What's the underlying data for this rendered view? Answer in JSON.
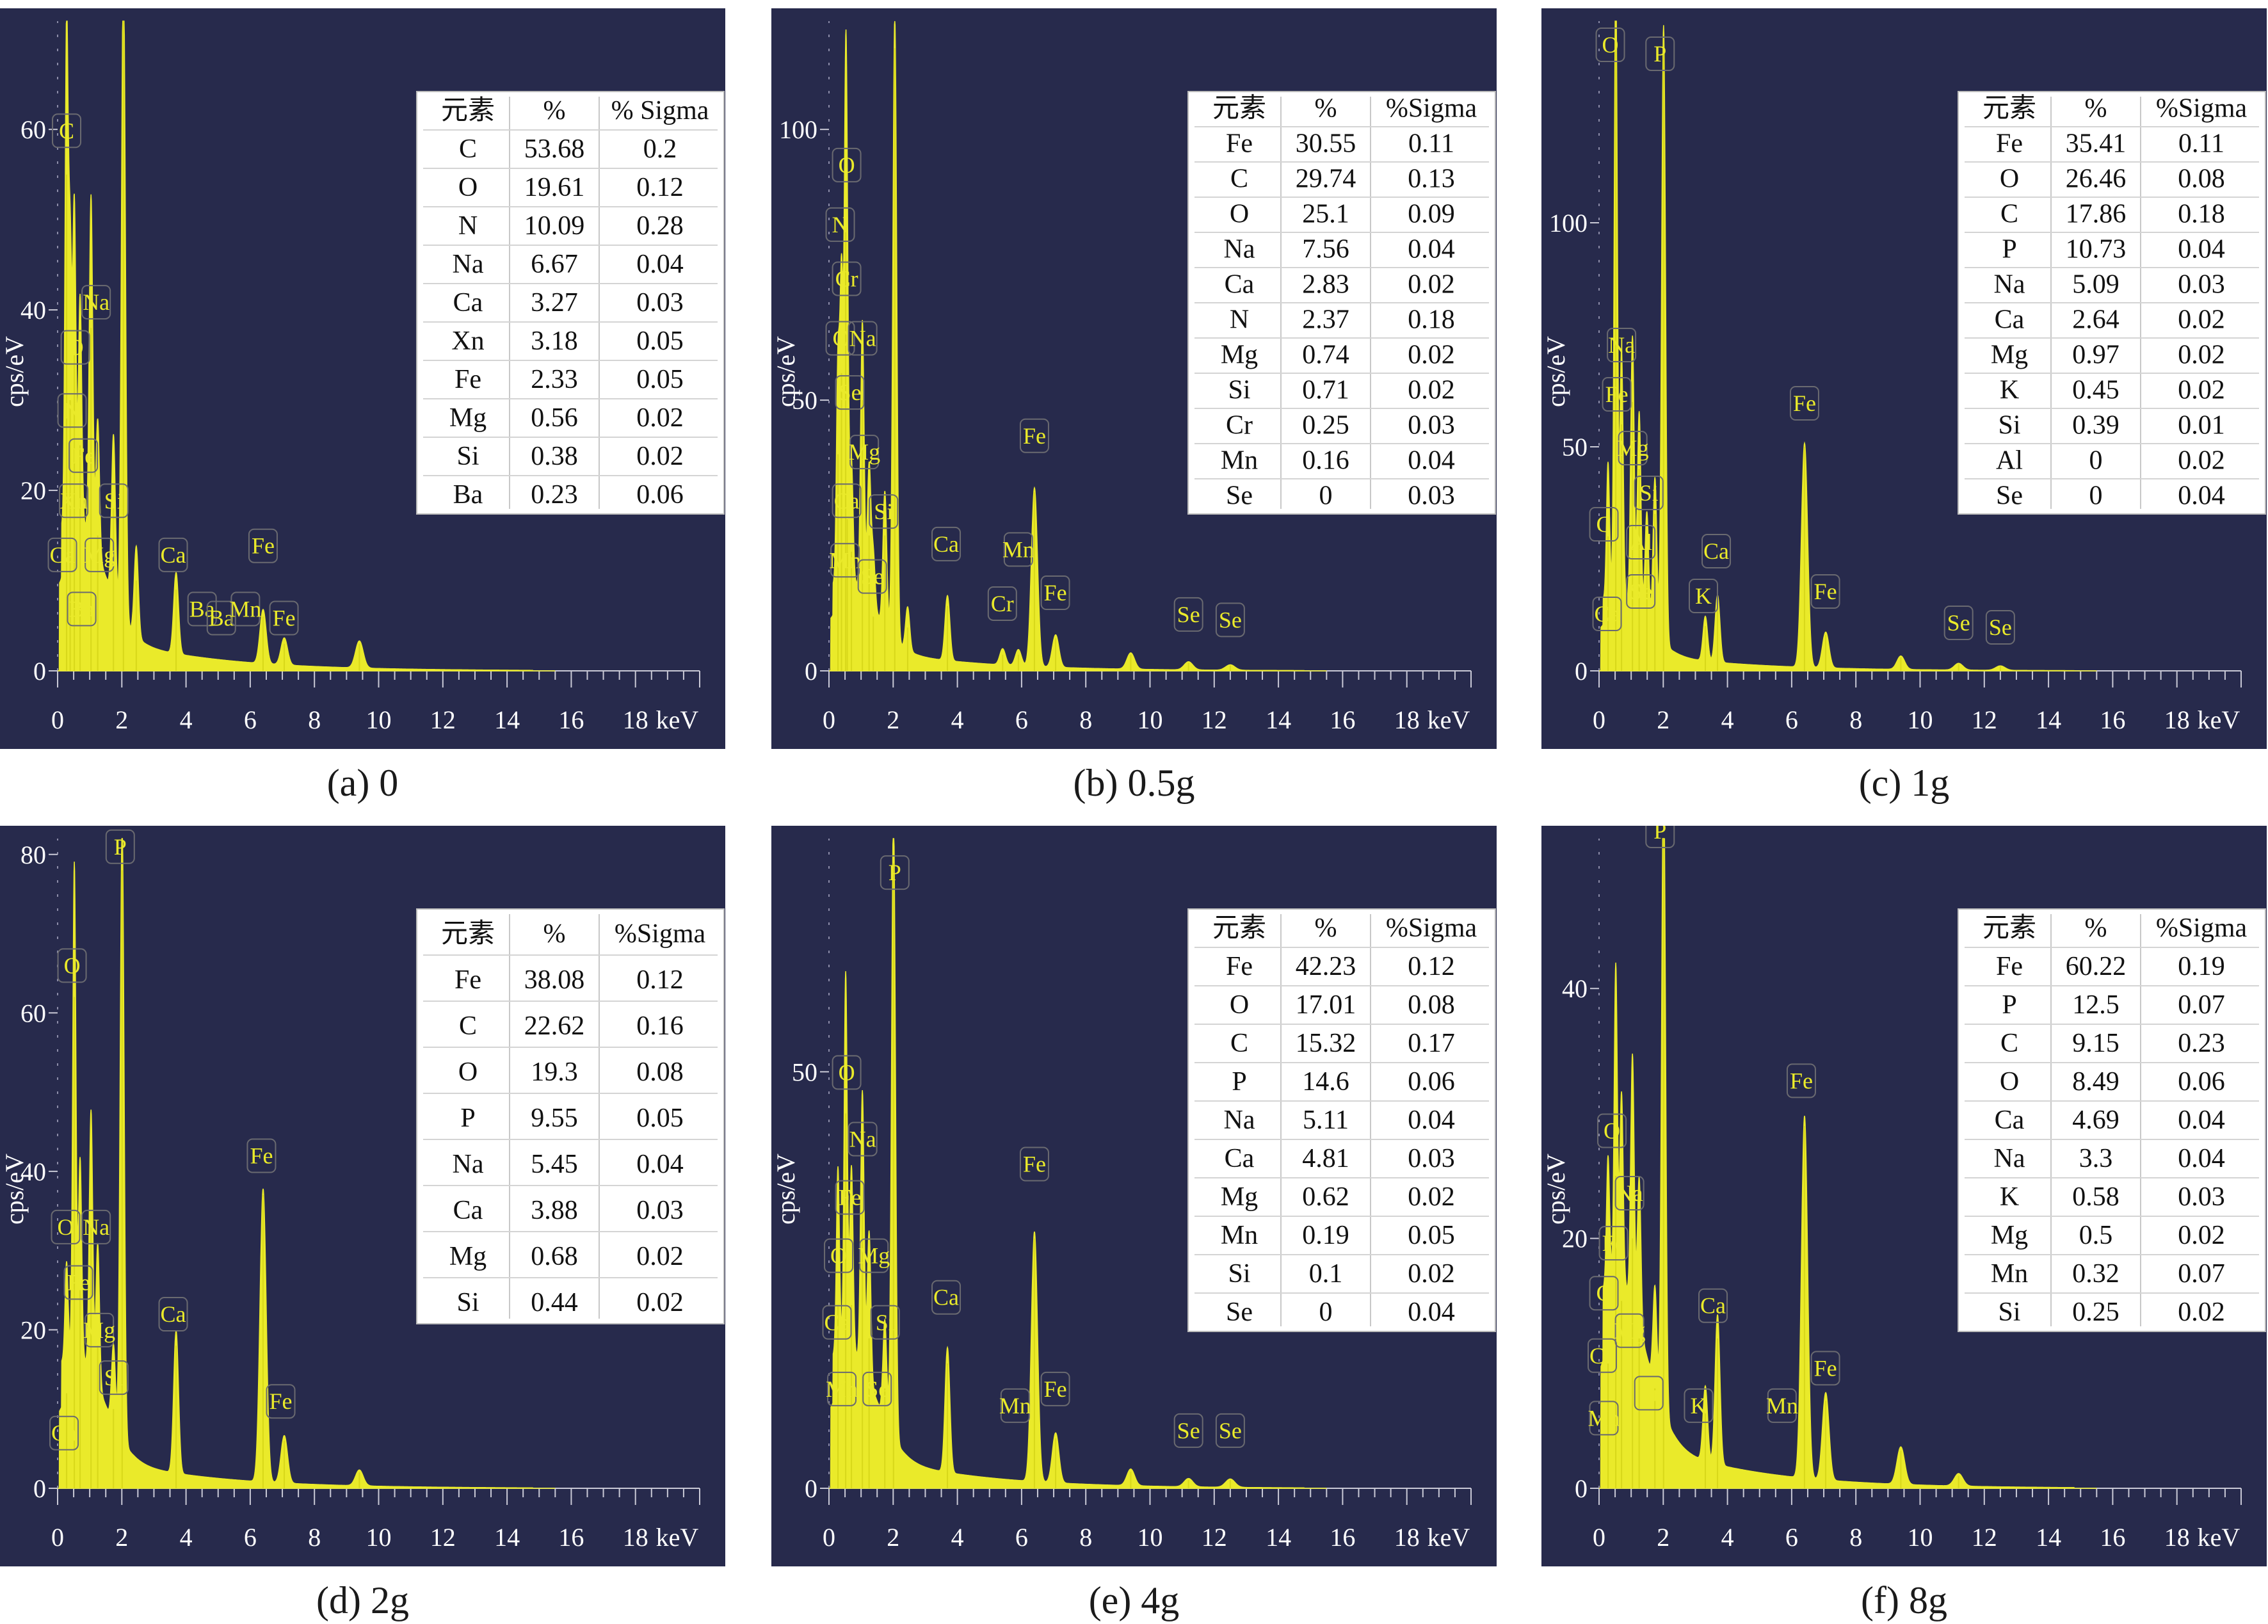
{
  "x_unit": "keV",
  "y_label": "cps/eV",
  "x_ticks": [
    0,
    2,
    4,
    6,
    8,
    10,
    12,
    14,
    16,
    18
  ],
  "table_header": {
    "element": "元素",
    "percent": "%"
  },
  "colors": {
    "background": "#272a4c",
    "spectrum": "#eaea2a",
    "axis_text": "#ffffff",
    "label": "#eaea2a",
    "table_bg": "#ffffff"
  },
  "chart_data": [
    {
      "type": "line",
      "caption": "(a) 0",
      "ylim": [
        0,
        72
      ],
      "y_ticks": [
        0,
        20,
        40,
        60
      ],
      "sigma_header": "% Sigma",
      "table": [
        [
          "C",
          "53.68",
          "0.2"
        ],
        [
          "O",
          "19.61",
          "0.12"
        ],
        [
          "N",
          "10.09",
          "0.28"
        ],
        [
          "Na",
          "6.67",
          "0.04"
        ],
        [
          "Ca",
          "3.27",
          "0.03"
        ],
        [
          "Xn",
          "3.18",
          "0.05"
        ],
        [
          "Fe",
          "2.33",
          "0.05"
        ],
        [
          "Mg",
          "0.56",
          "0.02"
        ],
        [
          "Si",
          "0.38",
          "0.02"
        ],
        [
          "Ba",
          "0.23",
          "0.06"
        ]
      ],
      "peaks": [
        {
          "x": 0.28,
          "y": 55
        },
        {
          "x": 0.39,
          "y": 30
        },
        {
          "x": 0.52,
          "y": 35
        },
        {
          "x": 0.7,
          "y": 25
        },
        {
          "x": 1.04,
          "y": 38
        },
        {
          "x": 1.25,
          "y": 15
        },
        {
          "x": 1.74,
          "y": 18
        },
        {
          "x": 2.05,
          "y": 73
        },
        {
          "x": 2.45,
          "y": 10
        },
        {
          "x": 3.69,
          "y": 9
        },
        {
          "x": 6.4,
          "y": 6
        },
        {
          "x": 7.06,
          "y": 3
        },
        {
          "x": 9.4,
          "y": 3
        }
      ],
      "labels": [
        {
          "text": "C",
          "x": 0.28,
          "y": 59
        },
        {
          "text": "Na",
          "x": 1.2,
          "y": 40
        },
        {
          "text": "O",
          "x": 0.55,
          "y": 35
        },
        {
          "text": "N",
          "x": 0.45,
          "y": 28
        },
        {
          "text": "Fe",
          "x": 0.8,
          "y": 23
        },
        {
          "text": "Xn",
          "x": 0.5,
          "y": 18
        },
        {
          "text": "Si",
          "x": 1.75,
          "y": 18
        },
        {
          "text": "Ca",
          "x": 0.15,
          "y": 12
        },
        {
          "text": "Mg",
          "x": 1.3,
          "y": 12
        },
        {
          "text": "Ba",
          "x": 0.75,
          "y": 6
        },
        {
          "text": "Ca",
          "x": 3.6,
          "y": 12
        },
        {
          "text": "Fe",
          "x": 6.4,
          "y": 13
        },
        {
          "text": "Ba",
          "x": 4.5,
          "y": 6
        },
        {
          "text": "Ba",
          "x": 5.1,
          "y": 5
        },
        {
          "text": "Mn",
          "x": 5.85,
          "y": 6
        },
        {
          "text": "Fe",
          "x": 7.05,
          "y": 5
        }
      ]
    },
    {
      "type": "line",
      "caption": "(b) 0.5g",
      "ylim": [
        0,
        120
      ],
      "y_ticks": [
        0,
        50,
        100
      ],
      "sigma_header": "%Sigma",
      "table": [
        [
          "Fe",
          "30.55",
          "0.11"
        ],
        [
          "C",
          "29.74",
          "0.13"
        ],
        [
          "O",
          "25.1",
          "0.09"
        ],
        [
          "Na",
          "7.56",
          "0.04"
        ],
        [
          "Ca",
          "2.83",
          "0.02"
        ],
        [
          "N",
          "2.37",
          "0.18"
        ],
        [
          "Mg",
          "0.74",
          "0.02"
        ],
        [
          "Si",
          "0.71",
          "0.02"
        ],
        [
          "Cr",
          "0.25",
          "0.03"
        ],
        [
          "Mn",
          "0.16",
          "0.04"
        ],
        [
          "Se",
          "0",
          "0.03"
        ]
      ],
      "peaks": [
        {
          "x": 0.28,
          "y": 40
        },
        {
          "x": 0.39,
          "y": 55
        },
        {
          "x": 0.52,
          "y": 82
        },
        {
          "x": 0.57,
          "y": 28
        },
        {
          "x": 0.7,
          "y": 22
        },
        {
          "x": 1.04,
          "y": 50
        },
        {
          "x": 1.25,
          "y": 25
        },
        {
          "x": 1.38,
          "y": 10
        },
        {
          "x": 1.74,
          "y": 25
        },
        {
          "x": 2.05,
          "y": 115
        },
        {
          "x": 2.45,
          "y": 8
        },
        {
          "x": 3.69,
          "y": 12
        },
        {
          "x": 5.41,
          "y": 3
        },
        {
          "x": 5.9,
          "y": 3
        },
        {
          "x": 6.4,
          "y": 33
        },
        {
          "x": 7.06,
          "y": 6
        },
        {
          "x": 9.4,
          "y": 3
        },
        {
          "x": 11.2,
          "y": 1.5
        },
        {
          "x": 12.5,
          "y": 1
        }
      ],
      "labels": [
        {
          "text": "O",
          "x": 0.55,
          "y": 92
        },
        {
          "text": "N",
          "x": 0.35,
          "y": 81
        },
        {
          "text": "Cr",
          "x": 0.55,
          "y": 71
        },
        {
          "text": "C",
          "x": 0.35,
          "y": 60
        },
        {
          "text": "Na",
          "x": 1.05,
          "y": 60
        },
        {
          "text": "Se",
          "x": 0.65,
          "y": 50
        },
        {
          "text": "Mg",
          "x": 1.1,
          "y": 39
        },
        {
          "text": "Ca",
          "x": 0.55,
          "y": 30
        },
        {
          "text": "Si",
          "x": 1.7,
          "y": 28
        },
        {
          "text": "Mn",
          "x": 0.5,
          "y": 19
        },
        {
          "text": "Se",
          "x": 1.35,
          "y": 16
        },
        {
          "text": "Ca",
          "x": 3.65,
          "y": 22
        },
        {
          "text": "Mn",
          "x": 5.9,
          "y": 21
        },
        {
          "text": "Cr",
          "x": 5.4,
          "y": 11
        },
        {
          "text": "Fe",
          "x": 6.4,
          "y": 42
        },
        {
          "text": "Fe",
          "x": 7.05,
          "y": 13
        },
        {
          "text": "Se",
          "x": 11.2,
          "y": 9
        },
        {
          "text": "Se",
          "x": 12.5,
          "y": 8
        }
      ]
    },
    {
      "type": "line",
      "caption": "(c) 1g",
      "ylim": [
        0,
        145
      ],
      "y_ticks": [
        0,
        50,
        100
      ],
      "sigma_header": "%Sigma",
      "table": [
        [
          "Fe",
          "35.41",
          "0.11"
        ],
        [
          "O",
          "26.46",
          "0.08"
        ],
        [
          "C",
          "17.86",
          "0.18"
        ],
        [
          "P",
          "10.73",
          "0.04"
        ],
        [
          "Na",
          "5.09",
          "0.03"
        ],
        [
          "Ca",
          "2.64",
          "0.02"
        ],
        [
          "Mg",
          "0.97",
          "0.02"
        ],
        [
          "K",
          "0.45",
          "0.02"
        ],
        [
          "Si",
          "0.39",
          "0.01"
        ],
        [
          "Al",
          "0",
          "0.02"
        ],
        [
          "Se",
          "0",
          "0.04"
        ]
      ],
      "peaks": [
        {
          "x": 0.28,
          "y": 30
        },
        {
          "x": 0.52,
          "y": 140
        },
        {
          "x": 0.7,
          "y": 55
        },
        {
          "x": 1.04,
          "y": 60
        },
        {
          "x": 1.25,
          "y": 45
        },
        {
          "x": 1.49,
          "y": 25
        },
        {
          "x": 1.74,
          "y": 35
        },
        {
          "x": 2.01,
          "y": 138
        },
        {
          "x": 3.31,
          "y": 10
        },
        {
          "x": 3.69,
          "y": 15
        },
        {
          "x": 6.4,
          "y": 50
        },
        {
          "x": 7.06,
          "y": 8
        },
        {
          "x": 9.4,
          "y": 3
        },
        {
          "x": 11.2,
          "y": 1.5
        },
        {
          "x": 12.5,
          "y": 1
        }
      ],
      "labels": [
        {
          "text": "O",
          "x": 0.35,
          "y": 138
        },
        {
          "text": "P",
          "x": 1.9,
          "y": 136
        },
        {
          "text": "Na",
          "x": 0.7,
          "y": 71
        },
        {
          "text": "Fe",
          "x": 0.55,
          "y": 60
        },
        {
          "text": "Mg",
          "x": 1.05,
          "y": 48
        },
        {
          "text": "Si",
          "x": 1.55,
          "y": 38
        },
        {
          "text": "C",
          "x": 0.15,
          "y": 31
        },
        {
          "text": "Al",
          "x": 1.3,
          "y": 27
        },
        {
          "text": "Se",
          "x": 1.3,
          "y": 16
        },
        {
          "text": "Ca",
          "x": 0.25,
          "y": 11
        },
        {
          "text": "K",
          "x": 3.25,
          "y": 15
        },
        {
          "text": "Ca",
          "x": 3.65,
          "y": 25
        },
        {
          "text": "Fe",
          "x": 6.4,
          "y": 58
        },
        {
          "text": "Fe",
          "x": 7.05,
          "y": 16
        },
        {
          "text": "Se",
          "x": 11.2,
          "y": 9
        },
        {
          "text": "Se",
          "x": 12.5,
          "y": 8
        }
      ]
    },
    {
      "type": "line",
      "caption": "(d) 2g",
      "ylim": [
        0,
        82
      ],
      "y_ticks": [
        0,
        20,
        40,
        60,
        80
      ],
      "sigma_header": "%Sigma",
      "table": [
        [
          "Fe",
          "38.08",
          "0.12"
        ],
        [
          "C",
          "22.62",
          "0.16"
        ],
        [
          "O",
          "19.3",
          "0.08"
        ],
        [
          "P",
          "9.55",
          "0.05"
        ],
        [
          "Na",
          "5.45",
          "0.04"
        ],
        [
          "Ca",
          "3.88",
          "0.03"
        ],
        [
          "Mg",
          "0.68",
          "0.02"
        ],
        [
          "Si",
          "0.44",
          "0.02"
        ]
      ],
      "peaks": [
        {
          "x": 0.28,
          "y": 12
        },
        {
          "x": 0.52,
          "y": 62
        },
        {
          "x": 0.7,
          "y": 25
        },
        {
          "x": 1.04,
          "y": 33
        },
        {
          "x": 1.25,
          "y": 18
        },
        {
          "x": 1.74,
          "y": 10
        },
        {
          "x": 2.01,
          "y": 78
        },
        {
          "x": 3.69,
          "y": 18
        },
        {
          "x": 6.4,
          "y": 37
        },
        {
          "x": 7.06,
          "y": 6
        },
        {
          "x": 9.4,
          "y": 2
        }
      ],
      "labels": [
        {
          "text": "P",
          "x": 1.95,
          "y": 80
        },
        {
          "text": "O",
          "x": 0.45,
          "y": 65
        },
        {
          "text": "Fe",
          "x": 6.35,
          "y": 41
        },
        {
          "text": "O",
          "x": 0.25,
          "y": 32
        },
        {
          "text": "Na",
          "x": 1.2,
          "y": 32
        },
        {
          "text": "Fe",
          "x": 0.65,
          "y": 25
        },
        {
          "text": "Mg",
          "x": 1.3,
          "y": 19
        },
        {
          "text": "Ca",
          "x": 3.6,
          "y": 21
        },
        {
          "text": "Si",
          "x": 1.75,
          "y": 13
        },
        {
          "text": "Fe",
          "x": 6.95,
          "y": 10
        },
        {
          "text": "Ca",
          "x": 0.2,
          "y": 6
        }
      ]
    },
    {
      "type": "line",
      "caption": "(e) 4g",
      "ylim": [
        0,
        78
      ],
      "y_ticks": [
        0,
        50
      ],
      "sigma_header": "%Sigma",
      "table": [
        [
          "Fe",
          "42.23",
          "0.12"
        ],
        [
          "O",
          "17.01",
          "0.08"
        ],
        [
          "C",
          "15.32",
          "0.17"
        ],
        [
          "P",
          "14.6",
          "0.06"
        ],
        [
          "Na",
          "5.11",
          "0.04"
        ],
        [
          "Ca",
          "4.81",
          "0.03"
        ],
        [
          "Mg",
          "0.62",
          "0.02"
        ],
        [
          "Mn",
          "0.19",
          "0.05"
        ],
        [
          "Si",
          "0.1",
          "0.02"
        ],
        [
          "Se",
          "0",
          "0.04"
        ]
      ],
      "peaks": [
        {
          "x": 0.28,
          "y": 22
        },
        {
          "x": 0.52,
          "y": 45
        },
        {
          "x": 0.7,
          "y": 22
        },
        {
          "x": 1.04,
          "y": 33
        },
        {
          "x": 1.25,
          "y": 18
        },
        {
          "x": 1.74,
          "y": 12
        },
        {
          "x": 2.01,
          "y": 75
        },
        {
          "x": 3.69,
          "y": 15
        },
        {
          "x": 6.4,
          "y": 30
        },
        {
          "x": 7.06,
          "y": 6
        },
        {
          "x": 9.4,
          "y": 2
        },
        {
          "x": 11.2,
          "y": 1
        },
        {
          "x": 12.5,
          "y": 1
        }
      ],
      "labels": [
        {
          "text": "P",
          "x": 2.05,
          "y": 73
        },
        {
          "text": "O",
          "x": 0.55,
          "y": 49
        },
        {
          "text": "Na",
          "x": 1.05,
          "y": 41
        },
        {
          "text": "Fe",
          "x": 0.65,
          "y": 34
        },
        {
          "text": "O",
          "x": 0.3,
          "y": 27
        },
        {
          "text": "Mg",
          "x": 1.4,
          "y": 27
        },
        {
          "text": "Ca",
          "x": 0.25,
          "y": 19
        },
        {
          "text": "Si",
          "x": 1.75,
          "y": 19
        },
        {
          "text": "Mn",
          "x": 0.4,
          "y": 11
        },
        {
          "text": "Se",
          "x": 1.5,
          "y": 11
        },
        {
          "text": "Ca",
          "x": 3.65,
          "y": 22
        },
        {
          "text": "Fe",
          "x": 6.4,
          "y": 38
        },
        {
          "text": "Mn",
          "x": 5.8,
          "y": 9
        },
        {
          "text": "Fe",
          "x": 7.05,
          "y": 11
        },
        {
          "text": "Se",
          "x": 11.2,
          "y": 6
        },
        {
          "text": "Se",
          "x": 12.5,
          "y": 6
        }
      ]
    },
    {
      "type": "line",
      "caption": "(f) 8g",
      "ylim": [
        0,
        52
      ],
      "y_ticks": [
        0,
        20,
        40
      ],
      "sigma_header": "%Sigma",
      "table": [
        [
          "Fe",
          "60.22",
          "0.19"
        ],
        [
          "P",
          "12.5",
          "0.07"
        ],
        [
          "C",
          "9.15",
          "0.23"
        ],
        [
          "O",
          "8.49",
          "0.06"
        ],
        [
          "Ca",
          "4.69",
          "0.04"
        ],
        [
          "Na",
          "3.3",
          "0.04"
        ],
        [
          "K",
          "0.58",
          "0.03"
        ],
        [
          "Mg",
          "0.5",
          "0.02"
        ],
        [
          "Mn",
          "0.32",
          "0.07"
        ],
        [
          "Si",
          "0.25",
          "0.02"
        ]
      ],
      "peaks": [
        {
          "x": 0.28,
          "y": 10
        },
        {
          "x": 0.52,
          "y": 25
        },
        {
          "x": 0.7,
          "y": 15
        },
        {
          "x": 1.04,
          "y": 20
        },
        {
          "x": 1.25,
          "y": 12
        },
        {
          "x": 1.74,
          "y": 8
        },
        {
          "x": 2.01,
          "y": 52
        },
        {
          "x": 3.31,
          "y": 6
        },
        {
          "x": 3.69,
          "y": 12
        },
        {
          "x": 6.4,
          "y": 29
        },
        {
          "x": 7.06,
          "y": 7
        },
        {
          "x": 9.4,
          "y": 3
        },
        {
          "x": 11.2,
          "y": 1
        }
      ],
      "labels": [
        {
          "text": "P",
          "x": 1.9,
          "y": 54
        },
        {
          "text": "O",
          "x": 0.4,
          "y": 28
        },
        {
          "text": "Fe",
          "x": 6.3,
          "y": 32
        },
        {
          "text": "Na",
          "x": 0.95,
          "y": 23
        },
        {
          "text": "Fe",
          "x": 0.45,
          "y": 19
        },
        {
          "text": "C",
          "x": 0.15,
          "y": 15
        },
        {
          "text": "Mg",
          "x": 0.95,
          "y": 12
        },
        {
          "text": "Ca",
          "x": 3.55,
          "y": 14
        },
        {
          "text": "Ca",
          "x": 0.1,
          "y": 10
        },
        {
          "text": "Si",
          "x": 1.55,
          "y": 7
        },
        {
          "text": "K",
          "x": 3.1,
          "y": 6
        },
        {
          "text": "Mn",
          "x": 0.15,
          "y": 5
        },
        {
          "text": "Mn",
          "x": 5.7,
          "y": 6
        },
        {
          "text": "Fe",
          "x": 7.05,
          "y": 9
        }
      ]
    }
  ]
}
